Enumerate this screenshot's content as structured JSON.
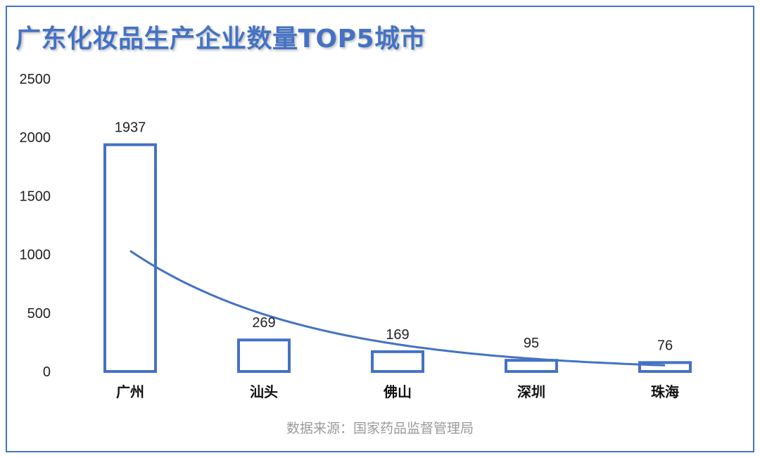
{
  "title": "广东化妆品生产企业数量TOP5城市",
  "source": "数据来源：国家药品监督管理局",
  "colors": {
    "accent": "#4472C4",
    "text": "#222222",
    "source": "#9a9a9a"
  },
  "chart_data": {
    "type": "bar",
    "title": "广东化妆品生产企业数量TOP5城市",
    "categories": [
      "广州",
      "汕头",
      "佛山",
      "深圳",
      "珠海"
    ],
    "values": [
      1937,
      269,
      169,
      95,
      76
    ],
    "data_labels": [
      "1937",
      "269",
      "169",
      "95",
      "76"
    ],
    "y_ticks": [
      "0",
      "500",
      "1000",
      "1500",
      "2000",
      "2500"
    ],
    "ylim": [
      0,
      2500
    ],
    "xlabel": "",
    "ylabel": "",
    "grid": false,
    "legend": "none",
    "bar_style": "outline",
    "trendline": {
      "type": "exponential",
      "values": [
        1030,
        490,
        230,
        110,
        52
      ]
    }
  }
}
